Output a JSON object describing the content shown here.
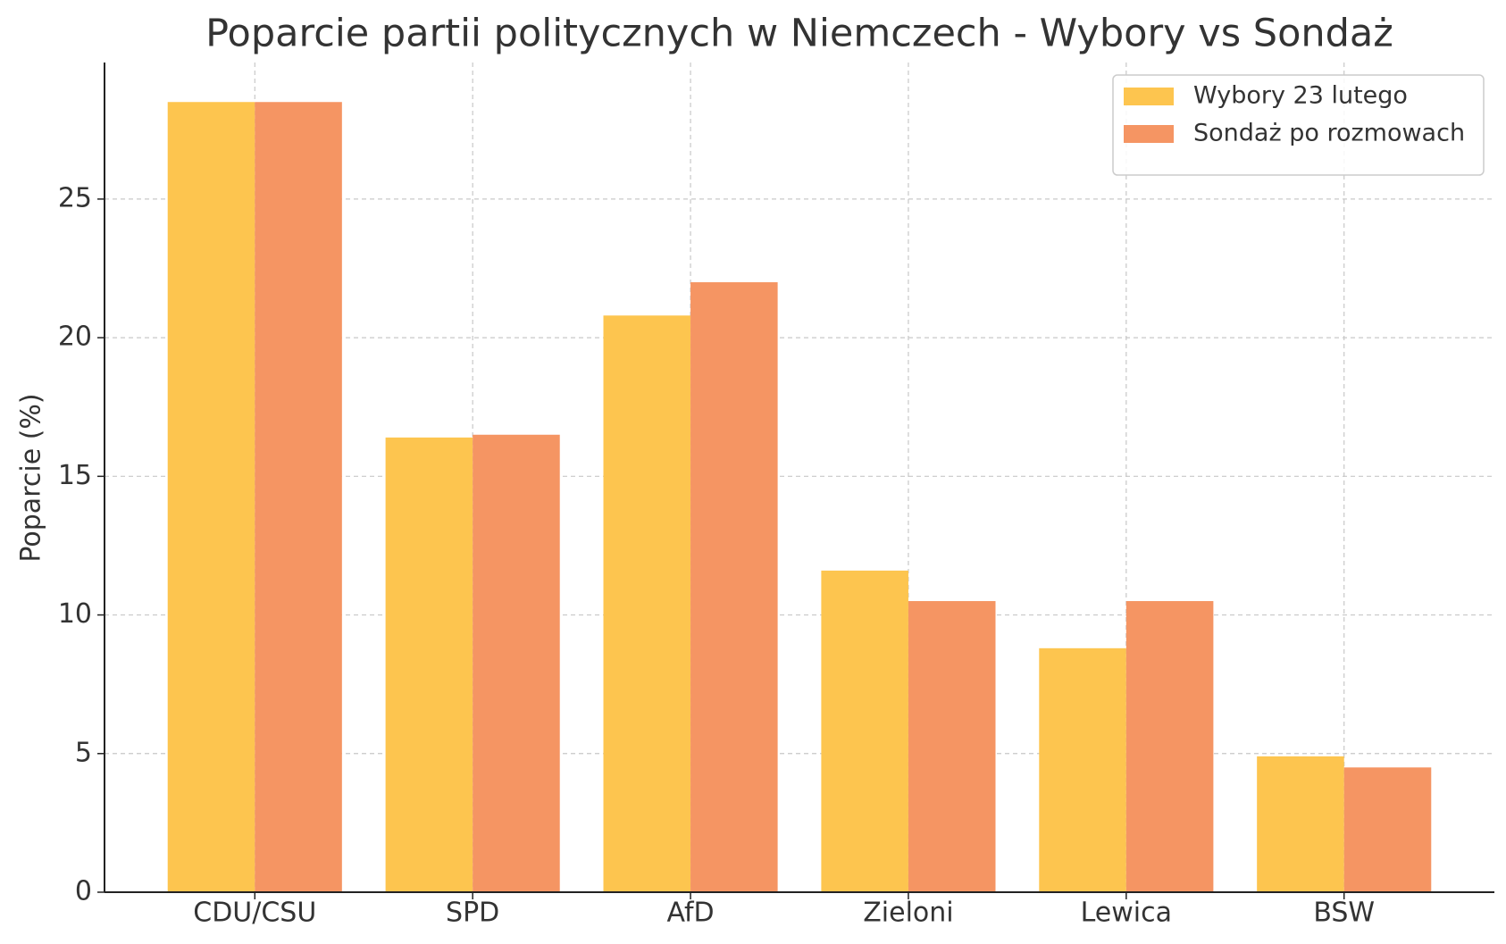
{
  "chart_data": {
    "type": "bar",
    "title": "Poparcie partii politycznych w Niemczech - Wybory vs Sondaż",
    "y_label": "Poparcie (%)",
    "categories": [
      "CDU/CSU",
      "SPD",
      "AfD",
      "Zieloni",
      "Lewica",
      "BSW"
    ],
    "series": [
      {
        "name": "Wybory 23 lutego",
        "color": "#fdc54f",
        "values": [
          28.5,
          16.4,
          20.8,
          11.6,
          8.8,
          4.9
        ]
      },
      {
        "name": "Sondaż po rozmowach",
        "color": "#f59563",
        "values": [
          28.5,
          16.5,
          22.0,
          10.5,
          10.5,
          4.5
        ]
      }
    ],
    "ylim": [
      0,
      29.925
    ],
    "yticks": [
      0,
      5,
      10,
      15,
      20,
      25
    ],
    "grid": true,
    "legend": "upper right"
  }
}
